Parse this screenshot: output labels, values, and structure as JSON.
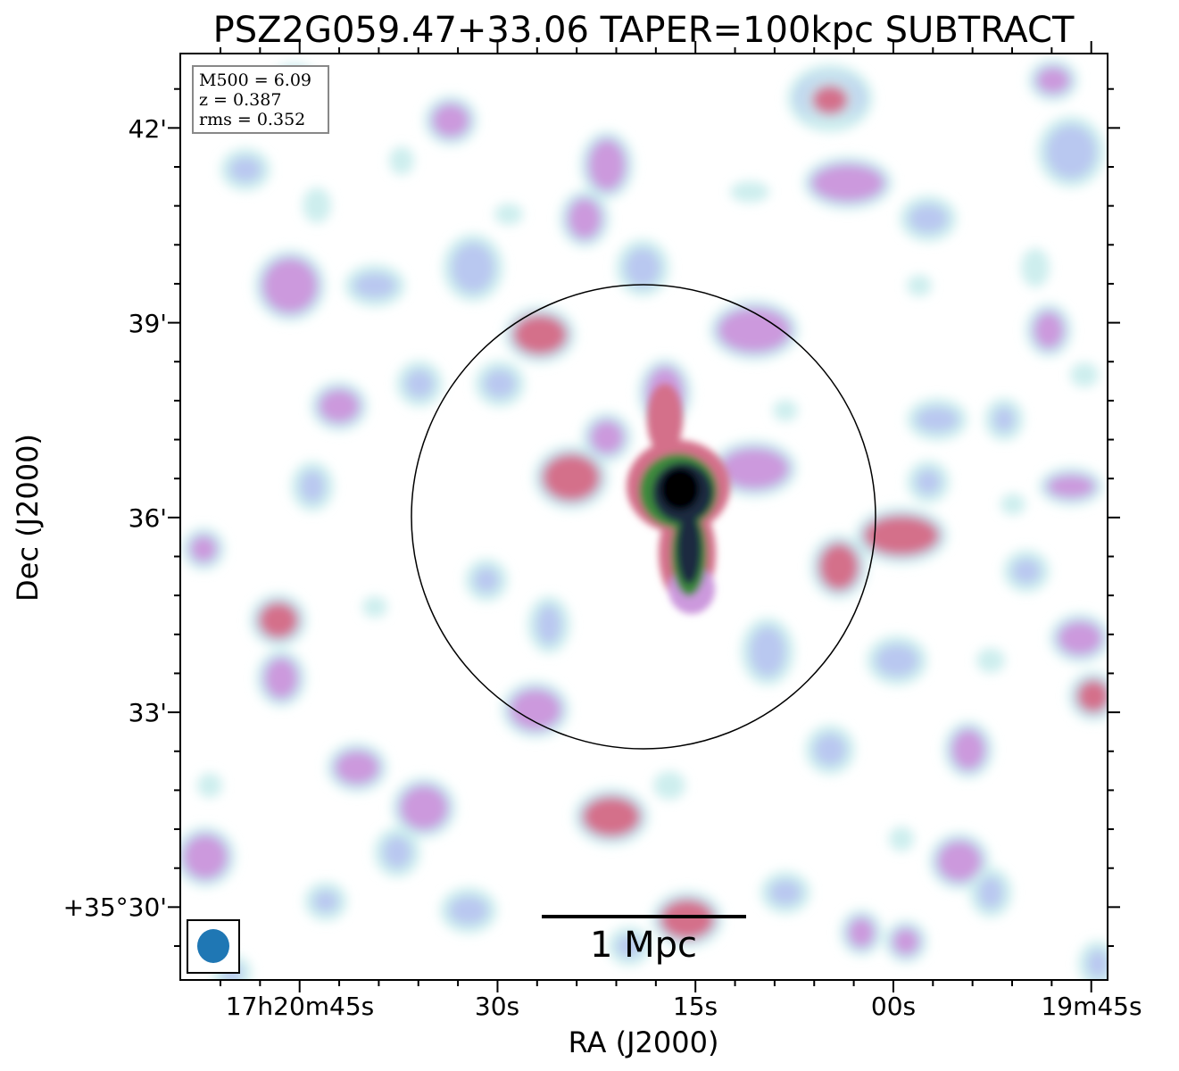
{
  "chart_data": {
    "type": "heatmap",
    "title": "PSZ2G059.47+33.06 TAPER=100kpc SUBTRACT",
    "xlabel": "RA (J2000)",
    "ylabel": "Dec (J2000)",
    "x_tick_labels": [
      "17h20m45s",
      "30s",
      "15s",
      "00s",
      "19m45s"
    ],
    "y_tick_labels": [
      "+35°30'",
      "33'",
      "36'",
      "39'",
      "42'"
    ],
    "info_box": {
      "m500": "M500 = 6.09",
      "z": "z = 0.387",
      "rms": "rms = 0.352"
    },
    "scale_bar_label": "1 Mpc",
    "colormap": [
      "#ffffff",
      "#cdeeee",
      "#b9c8f0",
      "#cc99dd",
      "#d4708a",
      "#c97b6a",
      "#3c8a3c",
      "#1a2a40",
      "#000000"
    ],
    "beam_color": "#1f77b4",
    "circle": "R500 circle centred on the cluster"
  }
}
